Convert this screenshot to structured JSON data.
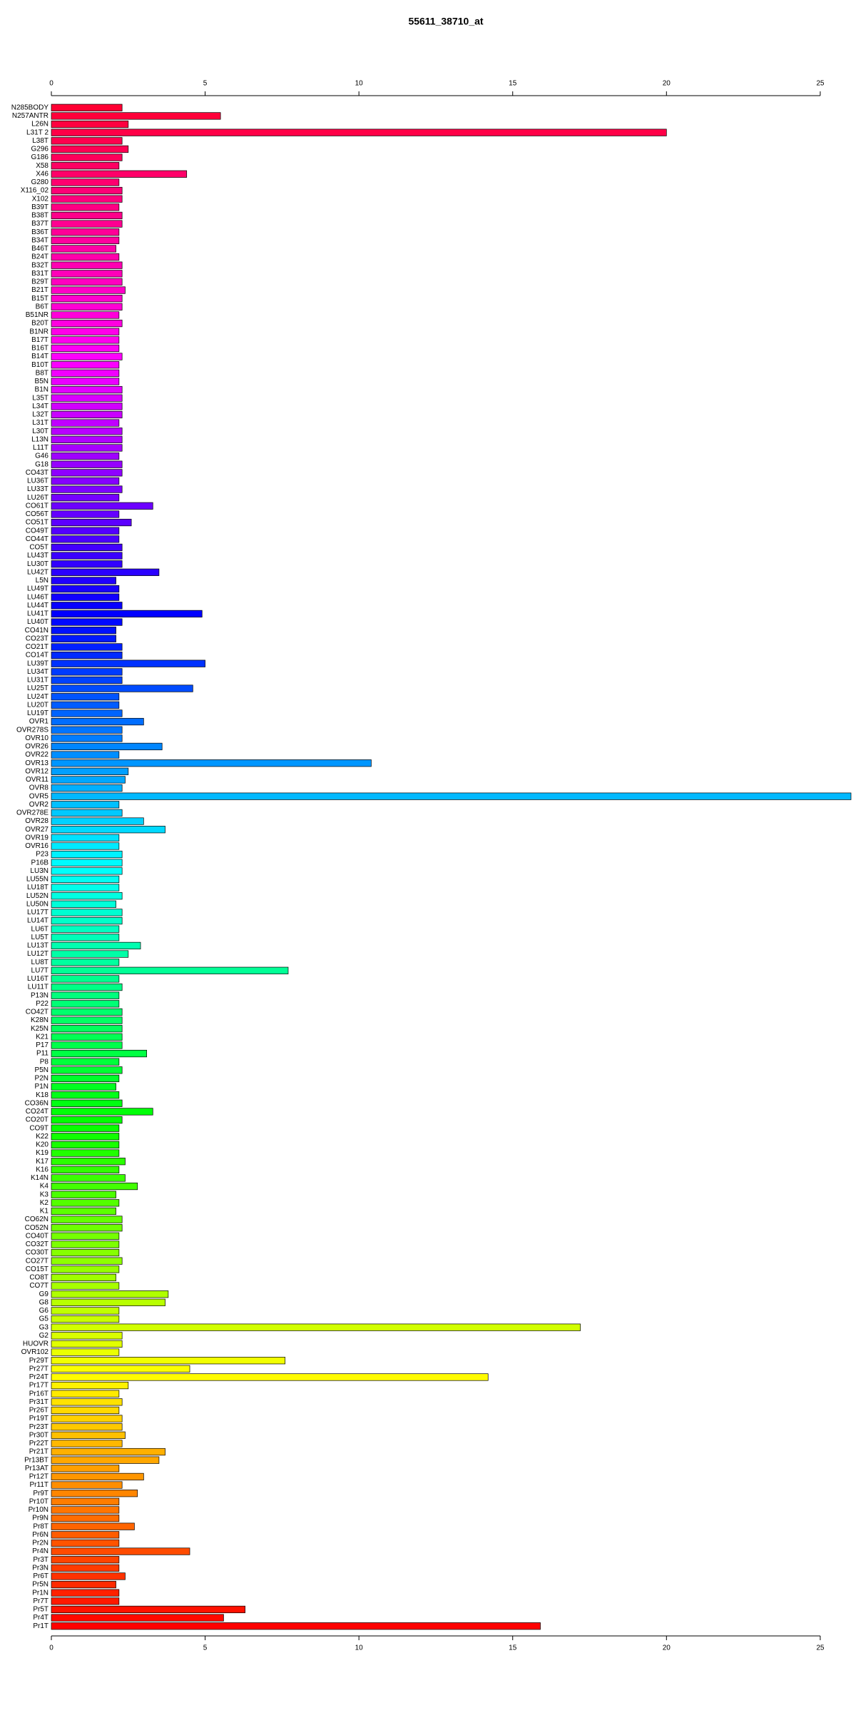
{
  "chart_data": {
    "type": "bar",
    "orientation": "horizontal",
    "title": "55611_38710_at",
    "categories": [
      "N285BODY",
      "N257ANTR",
      "L26N",
      "L31T 2",
      "L38T",
      "G296",
      "G186",
      "X58",
      "X46",
      "G280",
      "X116_02",
      "X102",
      "B39T",
      "B38T",
      "B37T",
      "B36T",
      "B34T",
      "B46T",
      "B24T",
      "B32T",
      "B31T",
      "B29T",
      "B21T",
      "B15T",
      "B6T",
      "B51NR",
      "B20T",
      "B1NR",
      "B17T",
      "B16T",
      "B14T",
      "B10T",
      "B8T",
      "B5N",
      "B1N",
      "L35T",
      "L34T",
      "L32T",
      "L31T",
      "L30T",
      "L13N",
      "L11T",
      "G46",
      "G18",
      "CO43T",
      "LU36T",
      "LU33T",
      "LU26T",
      "CO61T",
      "CO56T",
      "CO51T",
      "CO49T",
      "CO44T",
      "CO5T",
      "LU43T",
      "LU30T",
      "LU42T",
      "L5N",
      "LU49T",
      "LU46T",
      "LU44T",
      "LU41T",
      "LU40T",
      "CO41N",
      "CO23T",
      "CO21T",
      "CO14T",
      "LU39T",
      "LU34T",
      "LU31T",
      "LU25T",
      "LU24T",
      "LU20T",
      "LU19T",
      "OVR1",
      "OVR278S",
      "OVR10",
      "OVR26",
      "OVR22",
      "OVR13",
      "OVR12",
      "OVR11",
      "OVR8",
      "OVR5",
      "OVR2",
      "OVR278E",
      "OVR28",
      "OVR27",
      "OVR19",
      "OVR16",
      "P23",
      "P16B",
      "LU3N",
      "LU55N",
      "LU18T",
      "LU52N",
      "LU50N",
      "LU17T",
      "LU14T",
      "LU6T",
      "LU5T",
      "LU13T",
      "LU12T",
      "LU8T",
      "LU7T",
      "LU16T",
      "LU11T",
      "P13N",
      "P22",
      "CO42T",
      "K28N",
      "K25N",
      "K21",
      "P17",
      "P11",
      "P8",
      "P5N",
      "P2N",
      "P1N",
      "K18",
      "CO36N",
      "CO24T",
      "CO20T",
      "CO9T",
      "K22",
      "K20",
      "K19",
      "K17",
      "K16",
      "K14N",
      "K4",
      "K3",
      "K2",
      "K1",
      "CO62N",
      "CO52N",
      "CO40T",
      "CO32T",
      "CO30T",
      "CO27T",
      "CO15T",
      "CO8T",
      "CO7T",
      "G9",
      "G8",
      "G6",
      "G5",
      "G3",
      "G2",
      "HUOVR",
      "OVR102",
      "Pr29T",
      "Pr27T",
      "Pr24T",
      "Pr17T",
      "Pr16T",
      "Pr31T",
      "Pr26T",
      "Pr19T",
      "Pr23T",
      "Pr30T",
      "Pr22T",
      "Pr21T",
      "Pr13BT",
      "Pr13AT",
      "Pr12T",
      "Pr11T",
      "Pr9T",
      "Pr10T",
      "Pr10N",
      "Pr9N",
      "Pr8T",
      "Pr6N",
      "Pr2N",
      "Pr4N",
      "Pr3T",
      "Pr3N",
      "Pr6T",
      "Pr5N",
      "Pr1N",
      "Pr7T",
      "Pr5T",
      "Pr4T",
      "Pr1T"
    ],
    "values": [
      2.3,
      5.5,
      2.5,
      20.0,
      2.3,
      2.5,
      2.3,
      2.2,
      4.4,
      2.2,
      2.3,
      2.3,
      2.2,
      2.3,
      2.3,
      2.2,
      2.2,
      2.1,
      2.2,
      2.3,
      2.3,
      2.3,
      2.4,
      2.3,
      2.3,
      2.2,
      2.3,
      2.2,
      2.2,
      2.2,
      2.3,
      2.2,
      2.2,
      2.2,
      2.3,
      2.3,
      2.3,
      2.3,
      2.2,
      2.3,
      2.3,
      2.3,
      2.2,
      2.3,
      2.3,
      2.2,
      2.3,
      2.2,
      3.3,
      2.2,
      2.6,
      2.2,
      2.2,
      2.3,
      2.3,
      2.3,
      3.5,
      2.1,
      2.2,
      2.2,
      2.3,
      4.9,
      2.3,
      2.1,
      2.1,
      2.3,
      2.3,
      5.0,
      2.3,
      2.3,
      4.6,
      2.2,
      2.2,
      2.3,
      3.0,
      2.3,
      2.3,
      3.6,
      2.2,
      10.4,
      2.5,
      2.4,
      2.3,
      26.0,
      2.2,
      2.3,
      3.0,
      3.7,
      2.2,
      2.2,
      2.3,
      2.3,
      2.3,
      2.2,
      2.2,
      2.3,
      2.1,
      2.3,
      2.3,
      2.2,
      2.2,
      2.9,
      2.5,
      2.2,
      7.7,
      2.2,
      2.3,
      2.2,
      2.2,
      2.3,
      2.3,
      2.3,
      2.3,
      2.3,
      3.1,
      2.2,
      2.3,
      2.2,
      2.1,
      2.2,
      2.3,
      3.3,
      2.3,
      2.2,
      2.2,
      2.2,
      2.2,
      2.4,
      2.2,
      2.4,
      2.8,
      2.1,
      2.2,
      2.1,
      2.3,
      2.3,
      2.2,
      2.2,
      2.2,
      2.3,
      2.2,
      2.1,
      2.2,
      3.8,
      3.7,
      2.2,
      2.2,
      17.2,
      2.3,
      2.3,
      2.2,
      7.6,
      4.5,
      14.2,
      2.5,
      2.2,
      2.3,
      2.2,
      2.3,
      2.3,
      2.4,
      2.3,
      3.7,
      3.5,
      2.2,
      3.0,
      2.3,
      2.8,
      2.2,
      2.2,
      2.2,
      2.7,
      2.2,
      2.2,
      4.5,
      2.2,
      2.2,
      2.4,
      2.1,
      2.2,
      2.2,
      6.3,
      5.6,
      15.9
    ],
    "colors": [
      "#ff0033",
      "#ff00ff",
      "#0000ff",
      "#00ffff",
      "#00ff00",
      "#ffff00",
      "#ff0000"
    ],
    "xlim": [
      0,
      26
    ],
    "xticks": [
      0,
      5,
      10,
      15,
      20,
      25
    ]
  }
}
